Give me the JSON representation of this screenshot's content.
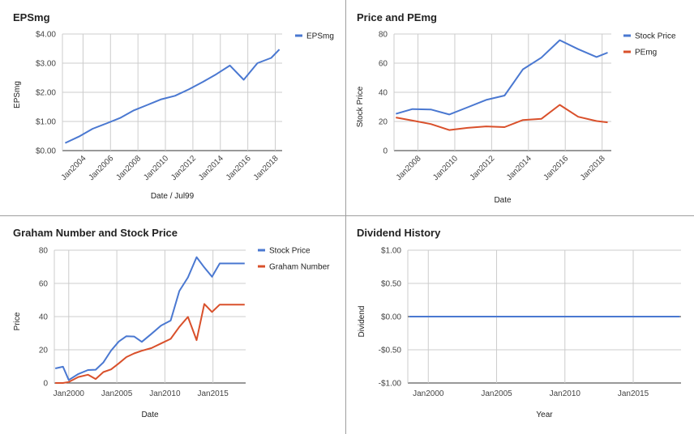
{
  "chart_data": [
    {
      "id": "eps",
      "type": "line",
      "title": "EPSmg",
      "xlabel": "Date / Jul99",
      "ylabel": "EPSmg",
      "x_ticks": [
        "Jan2004",
        "Jan2006",
        "Jan2008",
        "Jan2010",
        "Jan2012",
        "Jan2014",
        "Jan2016",
        "Jan2018"
      ],
      "y_ticks": [
        "$0.00",
        "$1.00",
        "$2.00",
        "$3.00",
        "$4.00"
      ],
      "ylim": [
        0,
        4
      ],
      "xlim": [
        2002.5,
        2018.5
      ],
      "grid": true,
      "legend_position": "top-right",
      "series": [
        {
          "name": "EPSmg",
          "color": "#4a78d1",
          "x": [
            2002.7,
            2003.7,
            2004.7,
            2005.7,
            2006.7,
            2007.7,
            2008.7,
            2009.7,
            2010.7,
            2011.7,
            2012.7,
            2013.7,
            2014.7,
            2015.7,
            2016.7,
            2017.7,
            2018.3
          ],
          "y": [
            0.26,
            0.48,
            0.75,
            0.93,
            1.12,
            1.38,
            1.57,
            1.76,
            1.88,
            2.1,
            2.35,
            2.62,
            2.92,
            2.43,
            3.0,
            3.18,
            3.47
          ]
        }
      ]
    },
    {
      "id": "pe",
      "type": "line",
      "title": "Price and PEmg",
      "xlabel": "Date",
      "ylabel": "Stock Price",
      "x_ticks": [
        "Jan2008",
        "Jan2010",
        "Jan2012",
        "Jan2014",
        "Jan2016",
        "Jan2018"
      ],
      "y_ticks": [
        "0",
        "20",
        "40",
        "60",
        "80"
      ],
      "ylim": [
        0,
        80
      ],
      "xlim": [
        2006.7,
        2018.5
      ],
      "grid": true,
      "legend_position": "top-right",
      "series": [
        {
          "name": "Stock Price",
          "color": "#4a78d1",
          "x": [
            2006.8,
            2007.7,
            2008.7,
            2009.7,
            2010.7,
            2011.7,
            2012.7,
            2013.7,
            2014.7,
            2015.7,
            2016.7,
            2017.7,
            2018.3
          ],
          "y": [
            25.2,
            28.5,
            28.2,
            24.8,
            29.7,
            34.8,
            37.8,
            55.8,
            63.8,
            75.8,
            69.6,
            64.2,
            67.2
          ]
        },
        {
          "name": "PEmg",
          "color": "#d9502b",
          "x": [
            2006.8,
            2007.7,
            2008.7,
            2009.7,
            2010.7,
            2011.7,
            2012.7,
            2013.7,
            2014.7,
            2015.7,
            2016.7,
            2017.7,
            2018.3
          ],
          "y": [
            22.7,
            20.6,
            18.2,
            14.1,
            15.6,
            16.6,
            16.1,
            21.0,
            21.8,
            31.4,
            23.2,
            20.3,
            19.4
          ]
        }
      ]
    },
    {
      "id": "graham",
      "type": "line",
      "title": "Graham Number and Stock Price",
      "xlabel": "Date",
      "ylabel": "Price",
      "x_ticks": [
        "Jan2000",
        "Jan2005",
        "Jan2010",
        "Jan2015"
      ],
      "y_ticks": [
        "0",
        "20",
        "40",
        "60",
        "80"
      ],
      "ylim": [
        0,
        80
      ],
      "xlim": [
        1998.5,
        2018.4
      ],
      "grid": true,
      "legend_position": "top-right",
      "series": [
        {
          "name": "Stock Price",
          "color": "#4a78d1",
          "x": [
            1998.6,
            1999.4,
            2000.0,
            2001.0,
            2002.0,
            2002.8,
            2003.6,
            2004.4,
            2005.2,
            2006.0,
            2006.8,
            2007.6,
            2008.6,
            2009.6,
            2010.6,
            2011.5,
            2012.4,
            2013.3,
            2014.1,
            2014.9,
            2015.7,
            2016.6,
            2017.5,
            2018.3
          ],
          "y": [
            8.8,
            9.8,
            1.8,
            5.4,
            7.8,
            8.0,
            12.4,
            19.5,
            25.0,
            28.2,
            28.0,
            24.8,
            29.6,
            34.6,
            37.6,
            55.4,
            63.6,
            75.8,
            69.6,
            64.0,
            72.0,
            72.0,
            72.0,
            72.0
          ]
        },
        {
          "name": "Graham Number",
          "color": "#d9502b",
          "x": [
            1998.6,
            1999.4,
            2000.0,
            2001.0,
            2002.0,
            2002.8,
            2003.6,
            2004.4,
            2005.2,
            2006.0,
            2006.8,
            2007.6,
            2008.6,
            2009.6,
            2010.6,
            2011.5,
            2012.4,
            2013.3,
            2014.1,
            2014.9,
            2015.7,
            2016.6,
            2017.5,
            2018.3
          ],
          "y": [
            0.0,
            0.0,
            0.6,
            3.6,
            5.0,
            2.4,
            6.6,
            8.2,
            11.8,
            15.6,
            17.8,
            19.4,
            21.0,
            23.8,
            26.6,
            33.8,
            39.8,
            25.8,
            47.6,
            42.8,
            47.2,
            47.2,
            47.2,
            47.2
          ]
        }
      ]
    },
    {
      "id": "div",
      "type": "line",
      "title": "Dividend History",
      "xlabel": "Year",
      "ylabel": "Dividend",
      "x_ticks": [
        "Jan2000",
        "Jan2005",
        "Jan2010",
        "Jan2015"
      ],
      "y_ticks": [
        "-$1.00",
        "-$0.50",
        "$0.00",
        "$0.50",
        "$1.00"
      ],
      "ylim": [
        -1,
        1
      ],
      "xlim": [
        1998.5,
        2018.5
      ],
      "grid": true,
      "legend_position": "none",
      "series": [
        {
          "color": "#4a78d1",
          "x": [
            1998.6,
            2018.4
          ],
          "y": [
            0.0,
            0.0
          ]
        }
      ]
    }
  ]
}
